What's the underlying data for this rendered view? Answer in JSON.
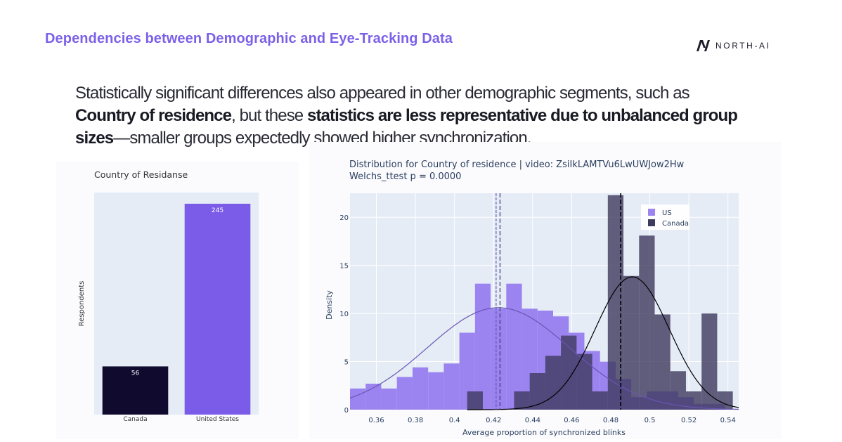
{
  "header": {
    "title": "Dependencies between Demographic and Eye-Tracking Data",
    "logo_text": "NORTH-AI"
  },
  "intro": {
    "p1": "Statistically significant differences also appeared in other demographic segments, such as ",
    "b1": "Country of residence",
    "p2": ", but these ",
    "b2": "statistics are less representative due to unbalanced group sizes",
    "p3": "—smaller groups expectedly showed higher synchronization."
  },
  "colors": {
    "bar_canada": "#100b2e",
    "bar_us": "#7b5ce8",
    "plot_bg": "#e5ecf6",
    "hist_us": "#9b84ef",
    "hist_canada": "#3e3a5e",
    "curve_us": "#6a55b3",
    "curve_canada": "#000000"
  },
  "chart_data": [
    {
      "type": "bar",
      "title": "Country of Residanse",
      "categories": [
        "Canada",
        "United States"
      ],
      "values": [
        56,
        245
      ],
      "xlabel": "",
      "ylabel": "Respondents",
      "ylim": [
        0,
        258
      ],
      "grid": false
    },
    {
      "type": "histogram",
      "title": "Distribution for Country of residence | video: ZsiIkLAMTVu6LwUWJow2Hw",
      "subtitle": "Welchs_ttest p = 0.0000",
      "xlabel": "Average proportion of synchronized blinks",
      "ylabel": "Density",
      "xlim": [
        0.3465,
        0.5455
      ],
      "ylim": [
        0,
        22.5
      ],
      "xticks": [
        "0.36",
        "0.38",
        "0.4",
        "0.42",
        "0.44",
        "0.46",
        "0.48",
        "0.5",
        "0.52",
        "0.54"
      ],
      "yticks": [
        "0",
        "5",
        "10",
        "15",
        "20"
      ],
      "legend": "top-right",
      "bin_width": 0.008,
      "series": [
        {
          "name": "US",
          "bin_start": 0.3465,
          "values": [
            2.2,
            2.7,
            2.2,
            3.4,
            4.4,
            3.9,
            4.8,
            8.0,
            13.1,
            10.5,
            13.1,
            10.5,
            10.3,
            9.7,
            8.0,
            6.1,
            5.0,
            3.2,
            1.3,
            1.9,
            1.9,
            1.3,
            0.6,
            0.6
          ],
          "mean": 0.4225
        },
        {
          "name": "Canada",
          "bin_start": 0.4065,
          "values": [
            1.9,
            0.0,
            0.0,
            1.9,
            3.8,
            5.6,
            7.7,
            5.8,
            1.9,
            22.3,
            13.9,
            18.1,
            9.9,
            4.0,
            1.9,
            10.0,
            1.9
          ],
          "mean": 0.4851
        }
      ],
      "means": [
        {
          "name": "US mean (a)",
          "x": 0.4213
        },
        {
          "name": "US mean (b)",
          "x": 0.4233
        },
        {
          "name": "Canada mean",
          "x": 0.4851
        }
      ],
      "curves": [
        {
          "name": "US density",
          "mu": 0.4225,
          "sigma": 0.0365,
          "peak": 10.6,
          "x_from": 0.3465,
          "x_to": 0.5455
        },
        {
          "name": "Canada density",
          "mu": 0.491,
          "sigma": 0.019,
          "peak": 13.8,
          "x_from": 0.4065,
          "x_to": 0.5455
        }
      ]
    }
  ]
}
